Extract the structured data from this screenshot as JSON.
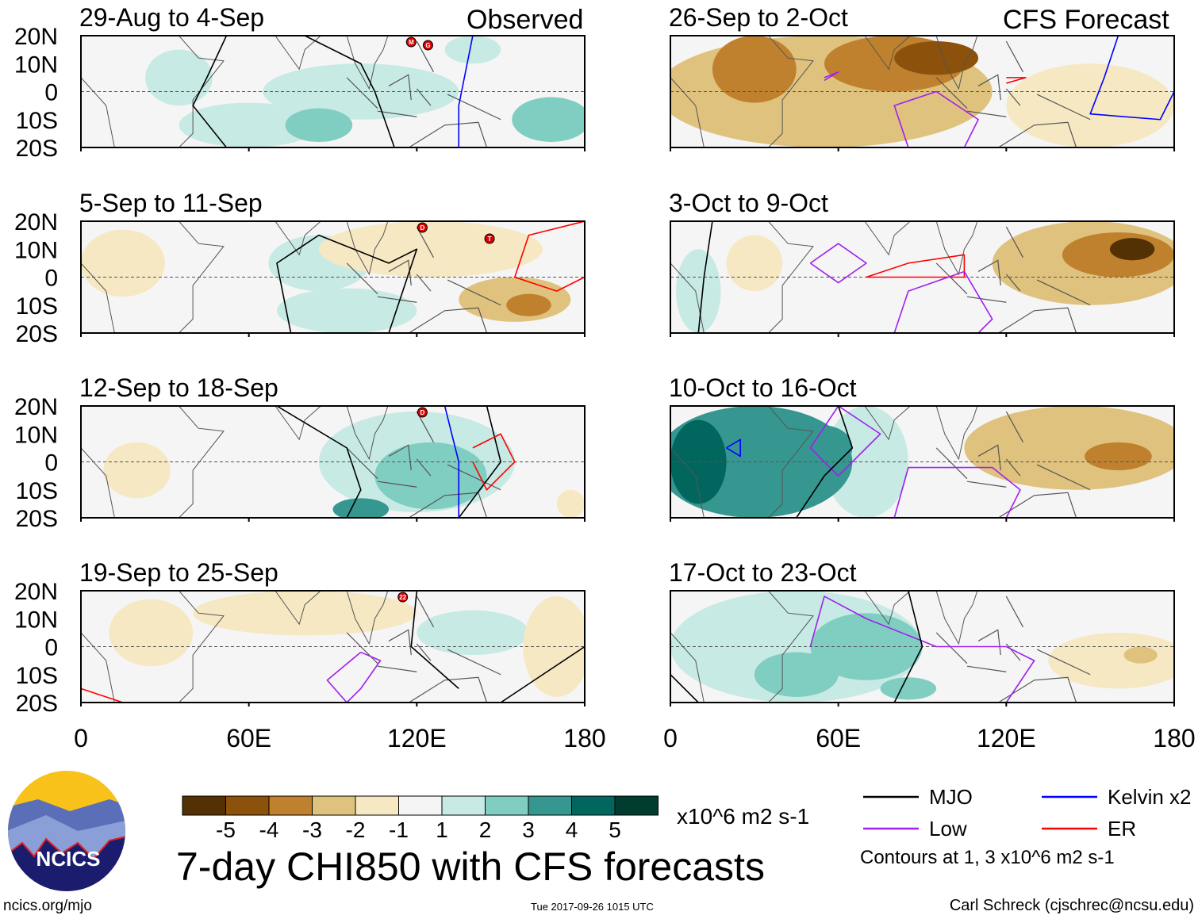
{
  "chart_data": {
    "type": "heatmap",
    "title": "7-day CHI850 with CFS forecasts",
    "variable_units": "x10^6 m2 s-1",
    "x_ticks": [
      "0",
      "60E",
      "120E",
      "180"
    ],
    "y_ticks": [
      "20N",
      "10N",
      "0",
      "10S",
      "20S"
    ],
    "xlim": [
      0,
      180
    ],
    "ylim": [
      -20,
      20
    ],
    "column_labels": {
      "left": "Observed",
      "right": "CFS Forecast"
    },
    "colorbar": {
      "ticks": [
        "-5",
        "-4",
        "-3",
        "-2",
        "-1",
        "1",
        "2",
        "3",
        "4",
        "5"
      ],
      "colors": [
        "#543005",
        "#8c510a",
        "#bf812d",
        "#dfc27d",
        "#f6e8c3",
        "#f5f5f5",
        "#c7eae5",
        "#80cdc1",
        "#35978f",
        "#01665e",
        "#003c30"
      ]
    },
    "legend": {
      "items": [
        {
          "label": "MJO",
          "color": "#000000"
        },
        {
          "label": "Kelvin x2",
          "color": "#0000ff"
        },
        {
          "label": "Low",
          "color": "#a020f0"
        },
        {
          "label": "ER",
          "color": "#ff0000"
        }
      ],
      "note": "Contours at 1, 3 x10^6 m2 s-1"
    },
    "panels": [
      {
        "title": "29-Aug to 4-Sep",
        "col": "left",
        "row": 0,
        "storms": [
          "M",
          "G"
        ],
        "fields": [
          [
            35,
            5,
            12,
            10,
            1
          ],
          [
            60,
            -12,
            25,
            8,
            1
          ],
          [
            85,
            -12,
            12,
            6,
            2
          ],
          [
            100,
            0,
            35,
            10,
            1
          ],
          [
            168,
            -10,
            14,
            8,
            2
          ],
          [
            140,
            15,
            10,
            5,
            1
          ]
        ],
        "contours": [
          {
            "type": "MJO",
            "pts": [
              [
                52,
                20
              ],
              [
                45,
                5
              ],
              [
                40,
                -5
              ],
              [
                52,
                -20
              ]
            ]
          },
          {
            "type": "MJO",
            "pts": [
              [
                80,
                20
              ],
              [
                100,
                10
              ],
              [
                105,
                0
              ],
              [
                112,
                -20
              ]
            ]
          },
          {
            "type": "Kelvin",
            "pts": [
              [
                140,
                20
              ],
              [
                137,
                5
              ],
              [
                135,
                -5
              ],
              [
                135,
                -20
              ]
            ]
          }
        ]
      },
      {
        "title": "5-Sep to 11-Sep",
        "col": "left",
        "row": 1,
        "storms": [
          "D",
          "T"
        ],
        "fields": [
          [
            15,
            5,
            15,
            12,
            -1
          ],
          [
            95,
            -12,
            25,
            8,
            1
          ],
          [
            85,
            5,
            18,
            10,
            1
          ],
          [
            125,
            10,
            40,
            10,
            -1
          ],
          [
            155,
            -8,
            20,
            8,
            -2
          ],
          [
            160,
            -10,
            8,
            4,
            -3
          ]
        ],
        "contours": [
          {
            "type": "MJO",
            "pts": [
              [
                75,
                -20
              ],
              [
                70,
                5
              ],
              [
                85,
                15
              ],
              [
                110,
                5
              ],
              [
                120,
                10
              ],
              [
                110,
                -20
              ]
            ]
          },
          {
            "type": "ER",
            "pts": [
              [
                180,
                20
              ],
              [
                160,
                15
              ],
              [
                155,
                0
              ],
              [
                170,
                -5
              ],
              [
                180,
                0
              ]
            ]
          }
        ]
      },
      {
        "title": "12-Sep to 18-Sep",
        "col": "left",
        "row": 2,
        "storms": [
          "D"
        ],
        "fields": [
          [
            120,
            0,
            35,
            18,
            1
          ],
          [
            125,
            -5,
            20,
            12,
            2
          ],
          [
            100,
            -17,
            10,
            4,
            3
          ],
          [
            20,
            -3,
            12,
            10,
            -1
          ],
          [
            175,
            -15,
            5,
            5,
            -1
          ]
        ],
        "contours": [
          {
            "type": "MJO",
            "pts": [
              [
                70,
                20
              ],
              [
                95,
                5
              ],
              [
                100,
                -10
              ],
              [
                95,
                -20
              ]
            ]
          },
          {
            "type": "MJO",
            "pts": [
              [
                145,
                20
              ],
              [
                150,
                0
              ],
              [
                135,
                -20
              ]
            ]
          },
          {
            "type": "Kelvin",
            "pts": [
              [
                130,
                20
              ],
              [
                135,
                0
              ],
              [
                135,
                -20
              ]
            ]
          },
          {
            "type": "ER",
            "pts": [
              [
                140,
                5
              ],
              [
                150,
                10
              ],
              [
                155,
                0
              ],
              [
                145,
                -10
              ],
              [
                140,
                0
              ]
            ]
          }
        ]
      },
      {
        "title": "19-Sep to 25-Sep",
        "col": "left",
        "row": 3,
        "storms": [
          "22"
        ],
        "fields": [
          [
            25,
            5,
            15,
            12,
            -1
          ],
          [
            80,
            12,
            40,
            8,
            -1
          ],
          [
            140,
            5,
            20,
            8,
            1
          ],
          [
            170,
            0,
            12,
            18,
            -1
          ]
        ],
        "contours": [
          {
            "type": "Low",
            "pts": [
              [
                100,
                -2
              ],
              [
                107,
                -5
              ],
              [
                100,
                -15
              ],
              [
                95,
                -20
              ],
              [
                88,
                -12
              ],
              [
                100,
                -2
              ]
            ]
          },
          {
            "type": "MJO",
            "pts": [
              [
                120,
                20
              ],
              [
                118,
                0
              ],
              [
                135,
                -15
              ]
            ]
          },
          {
            "type": "MJO",
            "pts": [
              [
                150,
                -20
              ],
              [
                165,
                -10
              ],
              [
                180,
                0
              ]
            ]
          },
          {
            "type": "ER",
            "pts": [
              [
                0,
                -15
              ],
              [
                15,
                -20
              ]
            ]
          }
        ]
      },
      {
        "title": "26-Sep to 2-Oct",
        "col": "right",
        "row": 0,
        "storms": [],
        "fields": [
          [
            55,
            0,
            60,
            20,
            -2
          ],
          [
            30,
            8,
            15,
            12,
            -3
          ],
          [
            80,
            10,
            25,
            10,
            -3
          ],
          [
            95,
            12,
            15,
            6,
            -4
          ],
          [
            150,
            -5,
            30,
            15,
            -1
          ]
        ],
        "contours": [
          {
            "type": "Low",
            "pts": [
              [
                85,
                -20
              ],
              [
                80,
                -5
              ],
              [
                95,
                0
              ],
              [
                110,
                -10
              ],
              [
                105,
                -20
              ],
              [
                85,
                -20
              ]
            ]
          },
          {
            "type": "ER",
            "pts": [
              [
                120,
                5
              ],
              [
                127,
                5
              ],
              [
                120,
                3
              ]
            ]
          },
          {
            "type": "Low",
            "pts": [
              [
                55,
                5
              ],
              [
                60,
                7
              ],
              [
                55,
                4
              ]
            ]
          },
          {
            "type": "Kelvin",
            "pts": [
              [
                160,
                20
              ],
              [
                155,
                5
              ],
              [
                150,
                -8
              ],
              [
                175,
                -10
              ],
              [
                180,
                0
              ]
            ]
          }
        ]
      },
      {
        "title": "3-Oct to 9-Oct",
        "col": "right",
        "row": 1,
        "storms": [],
        "fields": [
          [
            150,
            5,
            35,
            15,
            -2
          ],
          [
            160,
            8,
            20,
            8,
            -3
          ],
          [
            165,
            10,
            8,
            4,
            -5
          ],
          [
            10,
            -5,
            8,
            15,
            1
          ],
          [
            30,
            5,
            10,
            10,
            -1
          ]
        ],
        "contours": [
          {
            "type": "Low",
            "pts": [
              [
                50,
                5
              ],
              [
                60,
                12
              ],
              [
                70,
                5
              ],
              [
                60,
                -2
              ],
              [
                50,
                5
              ]
            ]
          },
          {
            "type": "ER",
            "pts": [
              [
                70,
                0
              ],
              [
                85,
                5
              ],
              [
                105,
                8
              ],
              [
                105,
                0
              ],
              [
                70,
                0
              ]
            ]
          },
          {
            "type": "Low",
            "pts": [
              [
                80,
                -20
              ],
              [
                85,
                -5
              ],
              [
                105,
                2
              ],
              [
                115,
                -15
              ],
              [
                110,
                -20
              ]
            ]
          },
          {
            "type": "MJO",
            "pts": [
              [
                15,
                20
              ],
              [
                12,
                0
              ],
              [
                10,
                -20
              ]
            ]
          }
        ]
      },
      {
        "title": "10-Oct to 16-Oct",
        "col": "right",
        "row": 2,
        "storms": [],
        "fields": [
          [
            30,
            0,
            35,
            20,
            3
          ],
          [
            10,
            0,
            10,
            15,
            4
          ],
          [
            55,
            5,
            10,
            8,
            3
          ],
          [
            70,
            0,
            15,
            20,
            1
          ],
          [
            145,
            5,
            40,
            15,
            -2
          ],
          [
            160,
            2,
            12,
            5,
            -3
          ]
        ],
        "contours": [
          {
            "type": "Low",
            "pts": [
              [
                50,
                5
              ],
              [
                60,
                20
              ],
              [
                75,
                10
              ],
              [
                60,
                -5
              ],
              [
                50,
                5
              ]
            ]
          },
          {
            "type": "Low",
            "pts": [
              [
                80,
                -20
              ],
              [
                85,
                -2
              ],
              [
                115,
                -2
              ],
              [
                125,
                -10
              ],
              [
                120,
                -20
              ]
            ]
          },
          {
            "type": "MJO",
            "pts": [
              [
                45,
                -20
              ],
              [
                55,
                -5
              ],
              [
                65,
                5
              ],
              [
                60,
                20
              ]
            ]
          },
          {
            "type": "Kelvin",
            "pts": [
              [
                20,
                5
              ],
              [
                25,
                8
              ],
              [
                25,
                2
              ],
              [
                20,
                5
              ]
            ]
          }
        ]
      },
      {
        "title": "17-Oct to 23-Oct",
        "col": "right",
        "row": 3,
        "storms": [],
        "fields": [
          [
            45,
            0,
            45,
            20,
            1
          ],
          [
            70,
            0,
            20,
            12,
            2
          ],
          [
            45,
            -10,
            15,
            8,
            2
          ],
          [
            85,
            -15,
            10,
            4,
            2
          ],
          [
            160,
            -5,
            25,
            10,
            -1
          ],
          [
            168,
            -3,
            6,
            3,
            -2
          ]
        ],
        "contours": [
          {
            "type": "Low",
            "pts": [
              [
                50,
                0
              ],
              [
                55,
                18
              ],
              [
                70,
                10
              ],
              [
                95,
                0
              ],
              [
                120,
                0
              ],
              [
                130,
                -5
              ],
              [
                120,
                -20
              ]
            ]
          },
          {
            "type": "MJO",
            "pts": [
              [
                85,
                20
              ],
              [
                90,
                0
              ],
              [
                80,
                -20
              ]
            ]
          },
          {
            "type": "MJO",
            "pts": [
              [
                0,
                -10
              ],
              [
                10,
                -20
              ]
            ]
          }
        ]
      }
    ],
    "x_axis_labels_bottom": [
      "0",
      "60E",
      "120E",
      "180"
    ]
  },
  "footer": {
    "logo_text": "NCICS",
    "url": "ncics.org/mjo",
    "timestamp": "Tue 2017-09-26 1015 UTC",
    "author": "Carl Schreck (cjschrec@ncsu.edu)"
  }
}
